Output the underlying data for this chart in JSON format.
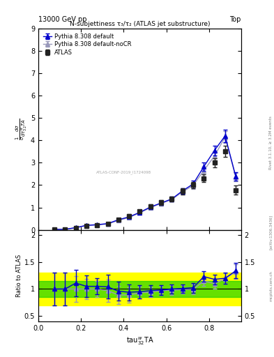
{
  "title_top": "13000 GeV pp",
  "title_right": "Top",
  "plot_title": "N-subjettiness τ₃/τ₂ (ATLAS jet substructure)",
  "xlabel": "tau$^{w}_{32}$TA",
  "ylabel_main": "dσ$^{-1}$ d  dσ/dτ$^{w}_{32}$TA",
  "ylabel_ratio": "Ratio to ATLAS",
  "watermark": "ATLAS-CONF-2019_I1724098",
  "rivet_label": "Rivet 3.1.10, ≥ 3.2M events",
  "arxiv_label": "[arXiv:1306.3436]",
  "mcplots_label": "mcplots.cern.ch",
  "atlas_x": [
    0.075,
    0.125,
    0.175,
    0.225,
    0.275,
    0.325,
    0.375,
    0.425,
    0.475,
    0.525,
    0.575,
    0.625,
    0.675,
    0.725,
    0.775,
    0.825,
    0.875,
    0.925
  ],
  "atlas_y": [
    0.02,
    0.02,
    0.09,
    0.19,
    0.22,
    0.27,
    0.47,
    0.62,
    0.82,
    1.05,
    1.22,
    1.38,
    1.72,
    2.0,
    2.3,
    3.0,
    3.5,
    1.78
  ],
  "atlas_yerr": [
    0.005,
    0.005,
    0.02,
    0.03,
    0.03,
    0.04,
    0.06,
    0.07,
    0.08,
    0.09,
    0.1,
    0.11,
    0.13,
    0.15,
    0.17,
    0.2,
    0.25,
    0.2
  ],
  "py_default_x": [
    0.075,
    0.125,
    0.175,
    0.225,
    0.275,
    0.325,
    0.375,
    0.425,
    0.475,
    0.525,
    0.575,
    0.625,
    0.675,
    0.725,
    0.775,
    0.825,
    0.875,
    0.925
  ],
  "py_default_y": [
    0.02,
    0.02,
    0.1,
    0.2,
    0.23,
    0.28,
    0.45,
    0.58,
    0.78,
    1.02,
    1.2,
    1.38,
    1.74,
    2.05,
    2.82,
    3.55,
    4.2,
    2.38
  ],
  "py_default_yerr": [
    0.003,
    0.003,
    0.015,
    0.025,
    0.025,
    0.035,
    0.05,
    0.06,
    0.07,
    0.08,
    0.09,
    0.1,
    0.12,
    0.14,
    0.18,
    0.22,
    0.28,
    0.18
  ],
  "py_nocr_x": [
    0.075,
    0.125,
    0.175,
    0.225,
    0.275,
    0.325,
    0.375,
    0.425,
    0.475,
    0.525,
    0.575,
    0.625,
    0.675,
    0.725,
    0.775,
    0.825,
    0.875,
    0.925
  ],
  "py_nocr_y": [
    0.02,
    0.02,
    0.09,
    0.19,
    0.22,
    0.26,
    0.42,
    0.55,
    0.76,
    0.99,
    1.18,
    1.35,
    1.7,
    1.98,
    2.65,
    3.3,
    4.15,
    2.35
  ],
  "py_nocr_yerr": [
    0.003,
    0.003,
    0.014,
    0.024,
    0.025,
    0.033,
    0.048,
    0.058,
    0.068,
    0.078,
    0.088,
    0.098,
    0.118,
    0.138,
    0.17,
    0.21,
    0.27,
    0.18
  ],
  "ratio_default_y": [
    1.0,
    1.0,
    1.11,
    1.05,
    1.05,
    1.04,
    0.96,
    0.94,
    0.95,
    0.97,
    0.98,
    1.0,
    1.01,
    1.025,
    1.23,
    1.18,
    1.2,
    1.34
  ],
  "ratio_default_yerr": [
    0.3,
    0.3,
    0.25,
    0.2,
    0.15,
    0.22,
    0.18,
    0.15,
    0.12,
    0.1,
    0.09,
    0.09,
    0.08,
    0.09,
    0.1,
    0.09,
    0.1,
    0.14
  ],
  "ratio_nocr_y": [
    1.0,
    1.0,
    1.0,
    1.0,
    1.0,
    0.97,
    0.89,
    0.89,
    0.93,
    0.94,
    0.97,
    0.98,
    0.99,
    0.99,
    1.15,
    1.1,
    1.19,
    1.32
  ],
  "ratio_nocr_yerr": [
    0.3,
    0.3,
    0.24,
    0.19,
    0.15,
    0.21,
    0.17,
    0.14,
    0.11,
    0.09,
    0.085,
    0.085,
    0.078,
    0.088,
    0.095,
    0.088,
    0.095,
    0.135
  ],
  "band_green_lo": 0.85,
  "band_green_hi": 1.15,
  "band_yellow_lo": 0.7,
  "band_yellow_hi": 1.3,
  "xlim": [
    0.0,
    0.95
  ],
  "ylim_main": [
    0.0,
    9.0
  ],
  "ylim_ratio": [
    0.4,
    2.1
  ],
  "color_atlas": "#222222",
  "color_default": "#0000cc",
  "color_nocr": "#9999bb",
  "color_green": "#00cc00",
  "color_yellow": "#ffff00",
  "bg_color": "#ffffff"
}
